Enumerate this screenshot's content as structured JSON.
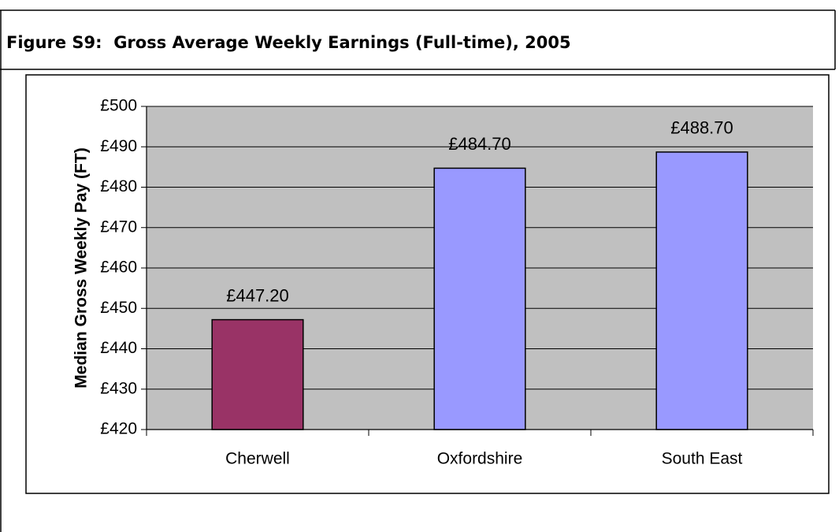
{
  "chart_data": {
    "type": "bar",
    "title": "Figure S9:  Gross Average Weekly Earnings (Full-time), 2005",
    "y_label": "Median Gross Weekly Pay (FT)",
    "categories": [
      "Cherwell",
      "Oxfordshire",
      "South East"
    ],
    "values": [
      447.2,
      484.7,
      488.7
    ],
    "value_labels": [
      "£447.20",
      "£484.70",
      "£488.70"
    ],
    "colors": [
      "#993366",
      "#9999ff",
      "#9999ff"
    ],
    "ylim": [
      420,
      500
    ],
    "yticks": [
      {
        "value": 420,
        "label": "£420"
      },
      {
        "value": 430,
        "label": "£430"
      },
      {
        "value": 440,
        "label": "£440"
      },
      {
        "value": 450,
        "label": "£450"
      },
      {
        "value": 460,
        "label": "£460"
      },
      {
        "value": 470,
        "label": "£470"
      },
      {
        "value": 480,
        "label": "£480"
      },
      {
        "value": 490,
        "label": "£490"
      },
      {
        "value": 500,
        "label": "£500"
      }
    ],
    "grid": true
  }
}
